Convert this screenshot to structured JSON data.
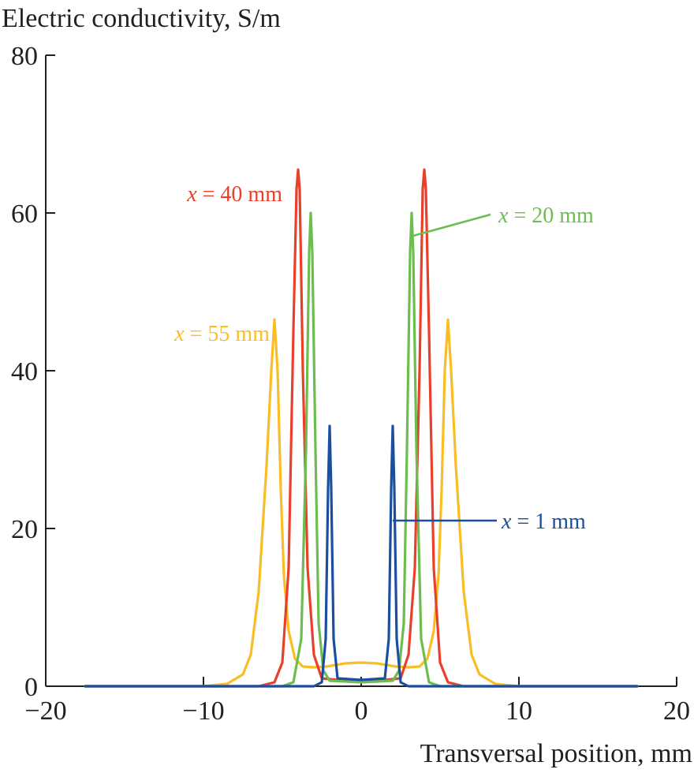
{
  "chart_data": {
    "type": "line",
    "ylabel": "Electric conductivity, S/m",
    "xlabel": "Transversal position, mm",
    "xlim": [
      -20,
      20
    ],
    "ylim": [
      0,
      80
    ],
    "xticks": [
      -20,
      -10,
      0,
      10,
      20
    ],
    "xtick_labels": [
      "−20",
      "−10",
      "0",
      "10",
      "20"
    ],
    "yticks": [
      0,
      20,
      40,
      60,
      80
    ],
    "ytick_labels": [
      "0",
      "20",
      "40",
      "60",
      "80"
    ],
    "series": [
      {
        "name": "x = 1 mm",
        "label_var": "x",
        "label_rest": " = 1 mm",
        "color": "#1a4fa0",
        "x": [
          -17.5,
          -3.0,
          -2.5,
          -2.25,
          -2.1,
          -2.0,
          -1.9,
          -1.75,
          -1.5,
          0,
          1.5,
          1.75,
          1.9,
          2.0,
          2.1,
          2.25,
          2.5,
          3.0,
          17.5
        ],
        "y": [
          0,
          0,
          0.5,
          6,
          25,
          33,
          25,
          6,
          1.0,
          0.8,
          1.0,
          6,
          25,
          33,
          25,
          6,
          0.5,
          0,
          0
        ],
        "label_anchor": [
          8.6,
          21
        ],
        "leader_from": [
          8.6,
          21
        ],
        "leader_to": [
          2.0,
          21
        ]
      },
      {
        "name": "x = 20 mm",
        "label_var": "x",
        "label_rest": " = 20 mm",
        "color": "#6cbd4f",
        "x": [
          -17.5,
          -5.0,
          -4.3,
          -3.8,
          -3.5,
          -3.3,
          -3.2,
          -3.1,
          -2.9,
          -2.7,
          -2.4,
          -2.0,
          0,
          2.0,
          2.4,
          2.7,
          2.9,
          3.1,
          3.2,
          3.3,
          3.5,
          3.8,
          4.3,
          5.0,
          17.5
        ],
        "y": [
          0,
          0,
          0.5,
          6,
          30,
          55,
          60,
          55,
          30,
          8,
          2,
          0.7,
          0.5,
          0.7,
          2,
          8,
          30,
          55,
          60,
          55,
          30,
          6,
          0.5,
          0,
          0
        ],
        "label_anchor": [
          8.4,
          59.8
        ],
        "leader_from": [
          8.2,
          59.8
        ],
        "leader_to": [
          3.1,
          57
        ]
      },
      {
        "name": "x = 40 mm",
        "label_var": "x",
        "label_rest": " = 40 mm",
        "color": "#e8402a",
        "x": [
          -17.5,
          -6.5,
          -5.5,
          -5.0,
          -4.6,
          -4.3,
          -4.1,
          -4.0,
          -3.9,
          -3.7,
          -3.4,
          -3.0,
          -2.5,
          0,
          2.5,
          3.0,
          3.4,
          3.7,
          3.9,
          4.0,
          4.1,
          4.3,
          4.6,
          5.0,
          5.5,
          6.5,
          17.5
        ],
        "y": [
          0,
          0,
          0.5,
          3,
          15,
          45,
          63,
          65.5,
          63,
          40,
          15,
          4,
          1,
          0.5,
          1,
          4,
          15,
          40,
          63,
          65.5,
          63,
          45,
          15,
          3,
          0.5,
          0,
          0
        ],
        "label_anchor": [
          -5.0,
          62.5
        ]
      },
      {
        "name": "x = 55 mm",
        "label_var": "x",
        "label_rest": " = 55 mm",
        "color": "#f9be25",
        "x": [
          -17.5,
          -10.0,
          -8.5,
          -7.5,
          -7.0,
          -6.5,
          -6.0,
          -5.7,
          -5.5,
          -5.3,
          -5.1,
          -4.9,
          -4.6,
          -4.2,
          -3.7,
          -3.0,
          -2.2,
          -1.0,
          0,
          1.0,
          2.2,
          3.0,
          3.7,
          4.2,
          4.6,
          4.9,
          5.1,
          5.3,
          5.5,
          5.7,
          6.0,
          6.5,
          7.0,
          7.5,
          8.5,
          10.0,
          17.5
        ],
        "y": [
          0,
          0,
          0.3,
          1.5,
          4,
          12,
          28,
          40,
          46.5,
          40,
          25,
          14,
          7,
          3.5,
          2.5,
          2.4,
          2.5,
          2.9,
          3.0,
          2.9,
          2.5,
          2.4,
          2.5,
          3.5,
          7,
          14,
          25,
          40,
          46.5,
          40,
          28,
          12,
          4,
          1.5,
          0.3,
          0,
          0
        ],
        "label_anchor": [
          -5.8,
          44.8
        ]
      }
    ]
  }
}
